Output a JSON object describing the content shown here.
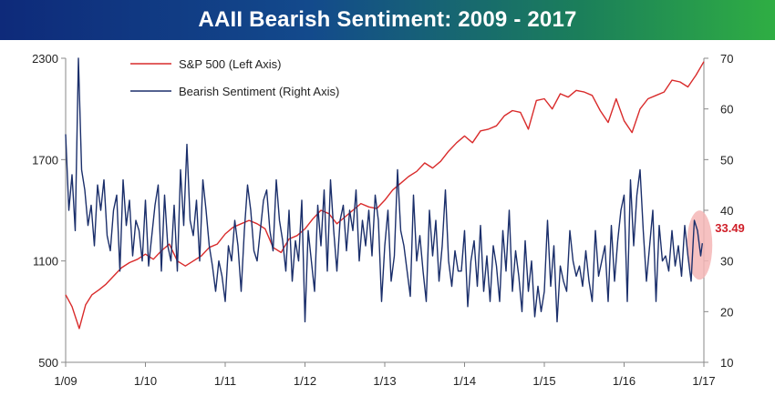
{
  "chart_data": {
    "type": "line",
    "title": "AAII Bearish Sentiment: 2009 - 2017",
    "x_tick_labels": [
      "1/09",
      "1/10",
      "1/11",
      "1/12",
      "1/13",
      "1/14",
      "1/15",
      "1/16",
      "1/17"
    ],
    "x_range": [
      2009.0,
      2017.0
    ],
    "y_left": {
      "range": [
        500,
        2300
      ],
      "ticks": [
        500,
        1100,
        1700,
        2300
      ]
    },
    "y_right": {
      "range": [
        10,
        70
      ],
      "ticks": [
        10,
        20,
        30,
        40,
        50,
        60,
        70
      ]
    },
    "grid": false,
    "legend": {
      "position": "top-left"
    },
    "annotation": {
      "label": "33.49",
      "series": "Bearish Sentiment (Right Axis)",
      "x": 2016.98,
      "y": 33.49,
      "highlight_color": "#f4b6b6"
    },
    "series": [
      {
        "name": "S&P 500 (Left Axis)",
        "axis": "left",
        "color": "#d92b2b",
        "x": [
          2009.0,
          2009.08,
          2009.17,
          2009.25,
          2009.33,
          2009.42,
          2009.5,
          2009.6,
          2009.7,
          2009.8,
          2009.9,
          2010.0,
          2010.1,
          2010.2,
          2010.3,
          2010.4,
          2010.5,
          2010.6,
          2010.7,
          2010.8,
          2010.9,
          2011.0,
          2011.1,
          2011.2,
          2011.3,
          2011.4,
          2011.5,
          2011.6,
          2011.7,
          2011.8,
          2011.9,
          2012.0,
          2012.1,
          2012.2,
          2012.3,
          2012.4,
          2012.5,
          2012.6,
          2012.7,
          2012.8,
          2012.9,
          2013.0,
          2013.1,
          2013.2,
          2013.3,
          2013.4,
          2013.5,
          2013.6,
          2013.7,
          2013.8,
          2013.9,
          2014.0,
          2014.1,
          2014.2,
          2014.3,
          2014.4,
          2014.5,
          2014.6,
          2014.7,
          2014.8,
          2014.9,
          2015.0,
          2015.1,
          2015.2,
          2015.3,
          2015.4,
          2015.5,
          2015.6,
          2015.7,
          2015.8,
          2015.9,
          2016.0,
          2016.1,
          2016.2,
          2016.3,
          2016.4,
          2016.5,
          2016.6,
          2016.7,
          2016.8,
          2016.9,
          2017.0
        ],
        "values": [
          900,
          830,
          700,
          840,
          900,
          930,
          960,
          1010,
          1060,
          1090,
          1110,
          1140,
          1110,
          1160,
          1200,
          1100,
          1070,
          1100,
          1130,
          1180,
          1200,
          1260,
          1300,
          1320,
          1340,
          1320,
          1290,
          1180,
          1150,
          1230,
          1250,
          1290,
          1350,
          1400,
          1380,
          1320,
          1360,
          1400,
          1440,
          1420,
          1410,
          1460,
          1520,
          1560,
          1600,
          1630,
          1680,
          1650,
          1690,
          1750,
          1800,
          1840,
          1800,
          1870,
          1880,
          1900,
          1960,
          1990,
          1980,
          1880,
          2050,
          2060,
          2000,
          2090,
          2070,
          2110,
          2100,
          2080,
          1990,
          1920,
          2060,
          1930,
          1860,
          2000,
          2060,
          2080,
          2100,
          2170,
          2160,
          2130,
          2200,
          2280
        ]
      },
      {
        "name": "Bearish Sentiment (Right Axis)",
        "axis": "right",
        "color": "#1b2f6b",
        "x": [
          2009.0,
          2009.04,
          2009.08,
          2009.12,
          2009.16,
          2009.2,
          2009.24,
          2009.28,
          2009.32,
          2009.36,
          2009.4,
          2009.44,
          2009.48,
          2009.52,
          2009.56,
          2009.6,
          2009.64,
          2009.68,
          2009.72,
          2009.76,
          2009.8,
          2009.84,
          2009.88,
          2009.92,
          2009.96,
          2010.0,
          2010.04,
          2010.08,
          2010.12,
          2010.16,
          2010.2,
          2010.24,
          2010.28,
          2010.32,
          2010.36,
          2010.4,
          2010.44,
          2010.48,
          2010.52,
          2010.56,
          2010.6,
          2010.64,
          2010.68,
          2010.72,
          2010.76,
          2010.8,
          2010.84,
          2010.88,
          2010.92,
          2010.96,
          2011.0,
          2011.04,
          2011.08,
          2011.12,
          2011.16,
          2011.2,
          2011.24,
          2011.28,
          2011.32,
          2011.36,
          2011.4,
          2011.44,
          2011.48,
          2011.52,
          2011.56,
          2011.6,
          2011.64,
          2011.68,
          2011.72,
          2011.76,
          2011.8,
          2011.84,
          2011.88,
          2011.92,
          2011.96,
          2012.0,
          2012.04,
          2012.08,
          2012.12,
          2012.16,
          2012.2,
          2012.24,
          2012.28,
          2012.32,
          2012.36,
          2012.4,
          2012.44,
          2012.48,
          2012.52,
          2012.56,
          2012.6,
          2012.64,
          2012.68,
          2012.72,
          2012.76,
          2012.8,
          2012.84,
          2012.88,
          2012.92,
          2012.96,
          2013.0,
          2013.04,
          2013.08,
          2013.12,
          2013.16,
          2013.2,
          2013.24,
          2013.28,
          2013.32,
          2013.36,
          2013.4,
          2013.44,
          2013.48,
          2013.52,
          2013.56,
          2013.6,
          2013.64,
          2013.68,
          2013.72,
          2013.76,
          2013.8,
          2013.84,
          2013.88,
          2013.92,
          2013.96,
          2014.0,
          2014.04,
          2014.08,
          2014.12,
          2014.16,
          2014.2,
          2014.24,
          2014.28,
          2014.32,
          2014.36,
          2014.4,
          2014.44,
          2014.48,
          2014.52,
          2014.56,
          2014.6,
          2014.64,
          2014.68,
          2014.72,
          2014.76,
          2014.8,
          2014.84,
          2014.88,
          2014.92,
          2014.96,
          2015.0,
          2015.04,
          2015.08,
          2015.12,
          2015.16,
          2015.2,
          2015.24,
          2015.28,
          2015.32,
          2015.36,
          2015.4,
          2015.44,
          2015.48,
          2015.52,
          2015.56,
          2015.6,
          2015.64,
          2015.68,
          2015.72,
          2015.76,
          2015.8,
          2015.84,
          2015.88,
          2015.92,
          2015.96,
          2016.0,
          2016.04,
          2016.08,
          2016.12,
          2016.16,
          2016.2,
          2016.24,
          2016.28,
          2016.32,
          2016.36,
          2016.4,
          2016.44,
          2016.48,
          2016.52,
          2016.56,
          2016.6,
          2016.64,
          2016.68,
          2016.72,
          2016.76,
          2016.8,
          2016.84,
          2016.88,
          2016.92,
          2016.96,
          2016.98
        ],
        "values": [
          55,
          40,
          47,
          36,
          70,
          48,
          44,
          37,
          41,
          33,
          45,
          40,
          46,
          35,
          32,
          40,
          43,
          28,
          46,
          37,
          42,
          31,
          38,
          36,
          30,
          42,
          29,
          35,
          41,
          45,
          28,
          43,
          33,
          30,
          41,
          28,
          48,
          37,
          53,
          38,
          35,
          42,
          30,
          46,
          40,
          33,
          29,
          24,
          30,
          27,
          22,
          33,
          30,
          38,
          33,
          24,
          36,
          45,
          40,
          32,
          30,
          36,
          42,
          44,
          36,
          32,
          46,
          38,
          34,
          28,
          40,
          26,
          34,
          30,
          42,
          18,
          36,
          30,
          24,
          41,
          33,
          44,
          28,
          46,
          36,
          28,
          38,
          41,
          32,
          40,
          36,
          44,
          30,
          38,
          33,
          40,
          31,
          43,
          38,
          22,
          33,
          40,
          26,
          31,
          48,
          36,
          33,
          28,
          23,
          43,
          30,
          35,
          28,
          22,
          40,
          31,
          38,
          26,
          33,
          44,
          30,
          25,
          32,
          28,
          28,
          36,
          21,
          30,
          34,
          25,
          37,
          24,
          31,
          22,
          33,
          29,
          22,
          36,
          28,
          40,
          24,
          32,
          27,
          20,
          34,
          24,
          30,
          19,
          25,
          20,
          24,
          38,
          25,
          33,
          18,
          29,
          26,
          24,
          36,
          30,
          27,
          29,
          25,
          32,
          26,
          22,
          36,
          27,
          30,
          33,
          22,
          37,
          26,
          34,
          40,
          43,
          22,
          46,
          33,
          43,
          48,
          36,
          26,
          33,
          40,
          22,
          37,
          30,
          31,
          28,
          36,
          29,
          33,
          27,
          37,
          31,
          26,
          38,
          36,
          31,
          33.49
        ]
      }
    ]
  }
}
